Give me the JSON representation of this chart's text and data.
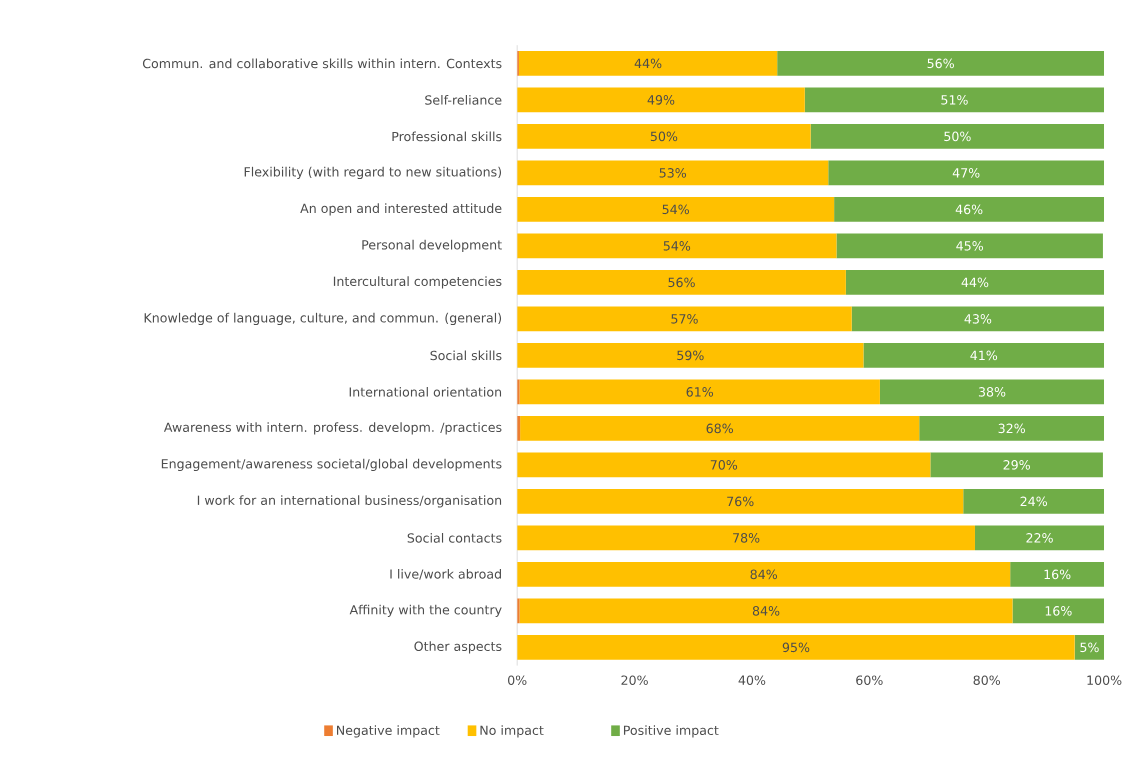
{
  "chart_data": {
    "type": "bar",
    "orientation": "horizontal",
    "stacked": true,
    "legend": "bottom",
    "categories": [
      "Commun. and collaborative skills within intern. Contexts",
      "Self-reliance",
      "Professional skills",
      "Flexibility (with regard to new situations)",
      "An open and interested attitude",
      "Personal development",
      "Intercultural competencies",
      "Knowledge of language, culture, and commun. (general)",
      "Social skills",
      "International orientation",
      "Awareness with intern. profess. developm. /practices",
      "Engagement/awareness societal/global developments",
      "I work for an international business/organisation",
      "Social contacts",
      "I live/work abroad",
      "Affinity with the country",
      "Other aspects"
    ],
    "series": [
      {
        "name": "Negative impact",
        "color": "#ed7d31",
        "values": [
          0.3,
          0,
          0,
          0,
          0,
          0,
          0,
          0,
          0,
          0.4,
          0.5,
          0,
          0,
          0,
          0,
          0.4,
          0
        ]
      },
      {
        "name": "No impact",
        "color": "#ffc000",
        "values": [
          44,
          49,
          50,
          53,
          54,
          54.4,
          56,
          57,
          59,
          61.4,
          68,
          70.4,
          76,
          78,
          84,
          84,
          95
        ],
        "value_labels": [
          "44%",
          "49%",
          "50%",
          "53%",
          "54%",
          "54%",
          "56%",
          "57%",
          "59%",
          "61%",
          "68%",
          "70%",
          "76%",
          "78%",
          "84%",
          "84%",
          "95%"
        ]
      },
      {
        "name": "Positive impact",
        "color": "#70ad47",
        "values": [
          55.7,
          51,
          50,
          47,
          46,
          45.4,
          44,
          43,
          41,
          38.2,
          31.5,
          29.4,
          24,
          22,
          16,
          15.6,
          5
        ],
        "value_labels": [
          "56%",
          "51%",
          "50%",
          "47%",
          "46%",
          "45%",
          "44%",
          "43%",
          "41%",
          "38%",
          "32%",
          "29%",
          "24%",
          "22%",
          "16%",
          "16%",
          "5%"
        ]
      }
    ],
    "xlim": [
      0,
      100
    ],
    "xticks": [
      {
        "value": 0,
        "label": "0%"
      },
      {
        "value": 20,
        "label": "20%"
      },
      {
        "value": 40,
        "label": "40%"
      },
      {
        "value": 60,
        "label": "60%"
      },
      {
        "value": 80,
        "label": "80%"
      },
      {
        "value": 100,
        "label": "100%"
      }
    ]
  }
}
